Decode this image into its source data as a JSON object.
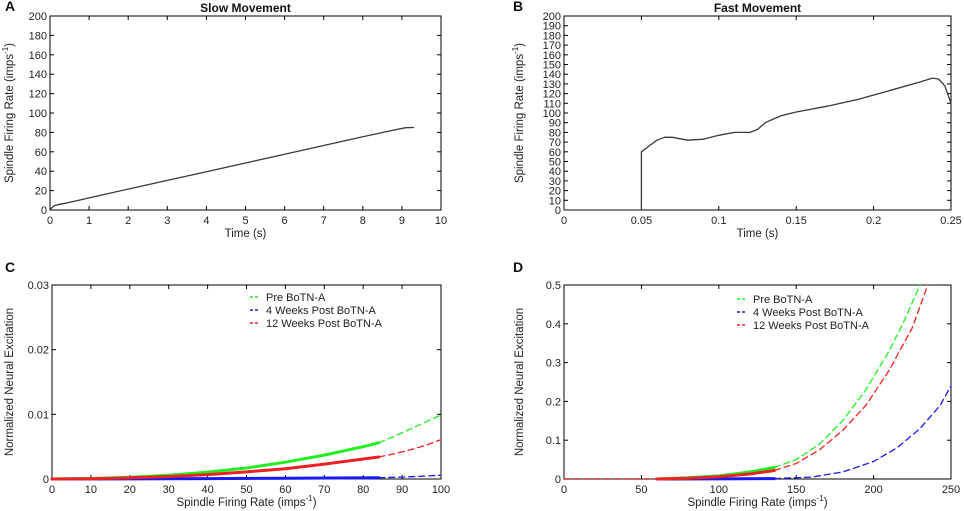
{
  "chart_data": [
    {
      "panel": "A",
      "type": "line",
      "title": "Slow Movement",
      "xlabel": "Time (s)",
      "ylabel_main": "Spindle Firing Rate (imps",
      "ylabel_sup": "-1",
      "ylabel_end": ")",
      "xlim": [
        0,
        10
      ],
      "ylim": [
        0,
        200
      ],
      "xticks": [
        0,
        1,
        2,
        3,
        4,
        5,
        6,
        7,
        8,
        9,
        10
      ],
      "yticks": [
        0,
        20,
        40,
        60,
        80,
        100,
        120,
        140,
        160,
        180,
        200
      ],
      "xtick_labels": [
        "0",
        "1",
        "2",
        "3",
        "4",
        "5",
        "6",
        "7",
        "8",
        "9",
        "10"
      ],
      "ytick_labels": [
        "0",
        "20",
        "40",
        "60",
        "80",
        "100",
        "120",
        "140",
        "160",
        "180",
        "200"
      ],
      "series": [
        {
          "name": "Spindle firing rate",
          "color": "#3a3a3a",
          "style": "solid",
          "x": [
            0,
            0.05,
            0.1,
            0.2,
            0.4,
            1,
            2,
            3,
            4,
            5,
            6,
            7,
            8,
            8.8,
            9.1,
            9.3
          ],
          "y": [
            0,
            2.5,
            4.2,
            5.5,
            7,
            12.5,
            21.5,
            30.5,
            39.5,
            48.5,
            57.5,
            66.5,
            75.5,
            82.5,
            84.8,
            85
          ]
        }
      ]
    },
    {
      "panel": "B",
      "type": "line",
      "title": "Fast Movement",
      "xlabel": "Time (s)",
      "ylabel_main": "Spindle Firing Rate (imps",
      "ylabel_sup": "-1",
      "ylabel_end": ")",
      "xlim": [
        0,
        0.25
      ],
      "ylim": [
        0,
        200
      ],
      "xticks": [
        0,
        0.05,
        0.1,
        0.15,
        0.2,
        0.25
      ],
      "yticks": [
        0,
        10,
        20,
        30,
        40,
        50,
        60,
        70,
        80,
        90,
        100,
        110,
        120,
        130,
        140,
        150,
        160,
        170,
        180,
        190,
        200
      ],
      "xtick_labels": [
        "0",
        "0.05",
        "0.1",
        "0.15",
        "0.2",
        "0.25"
      ],
      "ytick_labels": [
        "0",
        "10",
        "20",
        "30",
        "40",
        "50",
        "60",
        "70",
        "80",
        "90",
        "100",
        "110",
        "120",
        "130",
        "140",
        "150",
        "160",
        "170",
        "180",
        "190",
        "200"
      ],
      "series": [
        {
          "name": "Spindle firing rate",
          "color": "#3a3a3a",
          "style": "solid",
          "x": [
            0,
            0.05,
            0.05,
            0.055,
            0.06,
            0.065,
            0.07,
            0.08,
            0.09,
            0.1,
            0.11,
            0.12,
            0.125,
            0.13,
            0.14,
            0.15,
            0.17,
            0.19,
            0.21,
            0.23,
            0.238,
            0.242,
            0.246,
            0.25
          ],
          "y": [
            0,
            0,
            60,
            66,
            72,
            75,
            75,
            72,
            73,
            77,
            80,
            80,
            83,
            90,
            97,
            101,
            107,
            114,
            123,
            132,
            136,
            135,
            128,
            110
          ]
        }
      ]
    },
    {
      "panel": "C",
      "type": "line",
      "title": "",
      "xlabel_main": "Spindle Firing Rate (imps",
      "xlabel_sup": "-1",
      "xlabel_end": ")",
      "ylabel": "Normalized Neural Excitation",
      "xlim": [
        0,
        100
      ],
      "ylim": [
        0,
        0.03
      ],
      "xticks": [
        0,
        10,
        20,
        30,
        40,
        50,
        60,
        70,
        80,
        90,
        100
      ],
      "yticks": [
        0,
        0.01,
        0.02,
        0.03
      ],
      "xtick_labels": [
        "0",
        "10",
        "20",
        "30",
        "40",
        "50",
        "60",
        "70",
        "80",
        "90",
        "100"
      ],
      "ytick_labels": [
        "0",
        "0.01",
        "0.02",
        "0.03"
      ],
      "legend": [
        "Pre BoTN-A",
        "4 Weeks Post BoTN-A",
        "12 Weeks Post BoTN-A"
      ],
      "series": [
        {
          "name": "Pre BoTN-A",
          "color": "#22ee22",
          "style": "solid",
          "x": [
            0,
            10,
            20,
            30,
            40,
            50,
            60,
            70,
            80,
            84
          ],
          "y": [
            0,
            8e-05,
            0.00026,
            0.00058,
            0.00106,
            0.0017,
            0.0026,
            0.0037,
            0.005,
            0.0056
          ]
        },
        {
          "name": "Pre BoTN-A",
          "color": "#22ee22",
          "style": "dashed",
          "x": [
            84,
            88,
            92,
            96,
            100
          ],
          "y": [
            0.0056,
            0.0066,
            0.0077,
            0.0088,
            0.0099
          ]
        },
        {
          "name": "4 Weeks Post BoTN-A",
          "color": "#1a1aee",
          "style": "solid",
          "x": [
            0,
            20,
            40,
            60,
            84
          ],
          "y": [
            0,
            2e-05,
            6e-05,
            0.00012,
            0.0002
          ]
        },
        {
          "name": "4 Weeks Post BoTN-A",
          "color": "#1a1aee",
          "style": "dashed",
          "x": [
            84,
            90,
            95,
            100
          ],
          "y": [
            0.0002,
            0.0003,
            0.00042,
            0.00058
          ]
        },
        {
          "name": "12 Weeks Post BoTN-A",
          "color": "#ee2222",
          "style": "solid",
          "x": [
            0,
            10,
            20,
            30,
            40,
            50,
            60,
            70,
            80,
            84
          ],
          "y": [
            0,
            5e-05,
            0.00018,
            0.00038,
            0.00068,
            0.0011,
            0.0016,
            0.0023,
            0.0031,
            0.0034
          ]
        },
        {
          "name": "12 Weeks Post BoTN-A",
          "color": "#ee2222",
          "style": "dashed",
          "x": [
            84,
            88,
            92,
            96,
            100
          ],
          "y": [
            0.0034,
            0.0039,
            0.0045,
            0.0052,
            0.0061
          ]
        }
      ]
    },
    {
      "panel": "D",
      "type": "line",
      "title": "",
      "xlabel_main": "Spindle Firing Rate (imps",
      "xlabel_sup": "-1",
      "xlabel_end": ")",
      "ylabel": "Normalized Neural Excitation",
      "xlim": [
        0,
        250
      ],
      "ylim": [
        0,
        0.5
      ],
      "xticks": [
        0,
        50,
        100,
        150,
        200,
        250
      ],
      "yticks": [
        0,
        0.1,
        0.2,
        0.3,
        0.4,
        0.5
      ],
      "xtick_labels": [
        "0",
        "50",
        "100",
        "150",
        "200",
        "250"
      ],
      "ytick_labels": [
        "0",
        "0.1",
        "0.2",
        "0.3",
        "0.4",
        "0.5"
      ],
      "legend": [
        "Pre BoTN-A",
        "4 Weeks Post BoTN-A",
        "12 Weeks Post BoTN-A"
      ],
      "series": [
        {
          "name": "Pre BoTN-A",
          "color": "#22ee22",
          "style": "dashed",
          "x": [
            0,
            60
          ],
          "y": [
            0,
            0
          ]
        },
        {
          "name": "Pre BoTN-A",
          "color": "#22ee22",
          "style": "solid",
          "x": [
            60,
            80,
            100,
            120,
            136
          ],
          "y": [
            0,
            0.003,
            0.008,
            0.018,
            0.03
          ]
        },
        {
          "name": "Pre BoTN-A",
          "color": "#22ee22",
          "style": "dashed",
          "x": [
            136,
            150,
            165,
            180,
            195,
            210,
            220,
            230
          ],
          "y": [
            0.03,
            0.05,
            0.09,
            0.15,
            0.23,
            0.33,
            0.41,
            0.5
          ]
        },
        {
          "name": "4 Weeks Post BoTN-A",
          "color": "#1a1aee",
          "style": "dashed",
          "x": [
            0,
            60
          ],
          "y": [
            0,
            0
          ]
        },
        {
          "name": "4 Weeks Post BoTN-A",
          "color": "#1a1aee",
          "style": "solid",
          "x": [
            60,
            100,
            136
          ],
          "y": [
            0,
            0.0003,
            0.001
          ]
        },
        {
          "name": "4 Weeks Post BoTN-A",
          "color": "#1a1aee",
          "style": "dashed",
          "x": [
            136,
            160,
            180,
            200,
            215,
            230,
            243,
            250
          ],
          "y": [
            0.001,
            0.005,
            0.018,
            0.045,
            0.08,
            0.13,
            0.19,
            0.24
          ]
        },
        {
          "name": "12 Weeks Post BoTN-A",
          "color": "#ee2222",
          "style": "dashed",
          "x": [
            0,
            60
          ],
          "y": [
            0,
            0
          ]
        },
        {
          "name": "12 Weeks Post BoTN-A",
          "color": "#ee2222",
          "style": "solid",
          "x": [
            60,
            80,
            100,
            120,
            136
          ],
          "y": [
            0,
            0.002,
            0.006,
            0.013,
            0.022
          ]
        },
        {
          "name": "12 Weeks Post BoTN-A",
          "color": "#ee2222",
          "style": "dashed",
          "x": [
            136,
            150,
            165,
            180,
            195,
            210,
            225,
            235
          ],
          "y": [
            0.022,
            0.04,
            0.075,
            0.125,
            0.19,
            0.28,
            0.39,
            0.5
          ]
        }
      ]
    }
  ]
}
